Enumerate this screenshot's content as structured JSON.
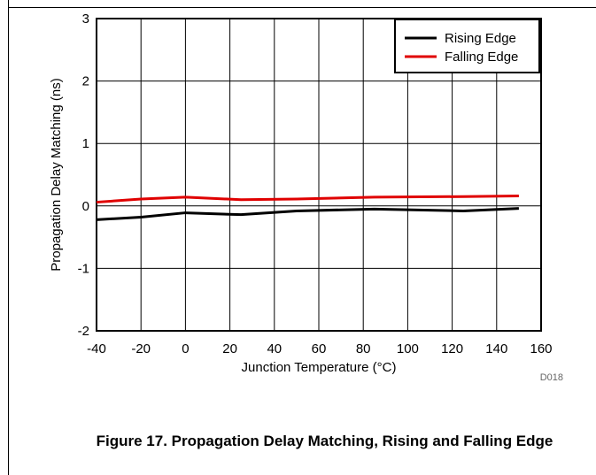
{
  "chart_data": {
    "type": "line",
    "title": "",
    "xlabel": "Junction Temperature (°C)",
    "ylabel": "Propagation Delay Matching (ns)",
    "xlim": [
      -40,
      160
    ],
    "ylim": [
      -2,
      3
    ],
    "xticks": [
      -40,
      -20,
      0,
      20,
      40,
      60,
      80,
      100,
      120,
      140,
      160
    ],
    "yticks": [
      -2,
      -1,
      0,
      1,
      2,
      3
    ],
    "grid": true,
    "legend_position": "top-right",
    "series": [
      {
        "name": "Rising Edge",
        "color": "#000000",
        "x": [
          -40,
          -20,
          0,
          25,
          50,
          85,
          125,
          150
        ],
        "y": [
          -0.22,
          -0.18,
          -0.11,
          -0.14,
          -0.08,
          -0.05,
          -0.08,
          -0.04
        ]
      },
      {
        "name": "Falling Edge",
        "color": "#e00000",
        "x": [
          -40,
          -20,
          0,
          25,
          50,
          85,
          125,
          150
        ],
        "y": [
          0.06,
          0.11,
          0.14,
          0.1,
          0.11,
          0.14,
          0.15,
          0.16
        ]
      }
    ],
    "figure_code": "D018"
  },
  "caption": "Figure 17. Propagation Delay Matching, Rising and Falling Edge"
}
